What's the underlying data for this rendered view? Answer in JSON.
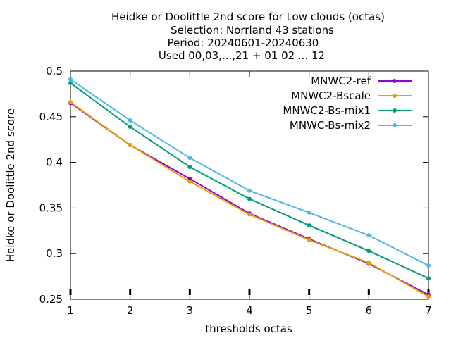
{
  "chart_data": {
    "type": "line",
    "title_lines": [
      "Heidke or Doolittle 2nd score  for Low clouds (octas)",
      "Selection: Norrland     43 stations",
      "Period: 20240601-20240630",
      "Used 00,03,...,21 + 01 02 ... 12"
    ],
    "xlabel": "thresholds octas",
    "ylabel": "Heidke or Doolittle 2nd score",
    "x": [
      1,
      2,
      3,
      4,
      5,
      6,
      7
    ],
    "xlim": [
      1,
      7
    ],
    "ylim": [
      0.25,
      0.5
    ],
    "x_ticks": [
      "1",
      "2",
      "3",
      "4",
      "5",
      "6",
      "7"
    ],
    "y_ticks": [
      "0.25",
      "0.3",
      "0.35",
      "0.4",
      "0.45",
      "0.5"
    ],
    "grid": false,
    "legend_position": "top-right",
    "series": [
      {
        "name": "MNWC2-ref",
        "color": "#9400d3",
        "values": [
          0.465,
          0.419,
          0.382,
          0.344,
          0.316,
          0.289,
          0.255
        ]
      },
      {
        "name": "MNWC2-Bscale",
        "color": "#e69f00",
        "values": [
          0.466,
          0.419,
          0.379,
          0.343,
          0.315,
          0.29,
          0.253
        ]
      },
      {
        "name": "MNWC2-Bs-mix1",
        "color": "#009e73",
        "values": [
          0.487,
          0.439,
          0.395,
          0.36,
          0.331,
          0.303,
          0.273
        ]
      },
      {
        "name": "MNWC-Bs-mix2",
        "color": "#56b4e9",
        "values": [
          0.491,
          0.446,
          0.405,
          0.369,
          0.345,
          0.32,
          0.287
        ]
      }
    ]
  }
}
